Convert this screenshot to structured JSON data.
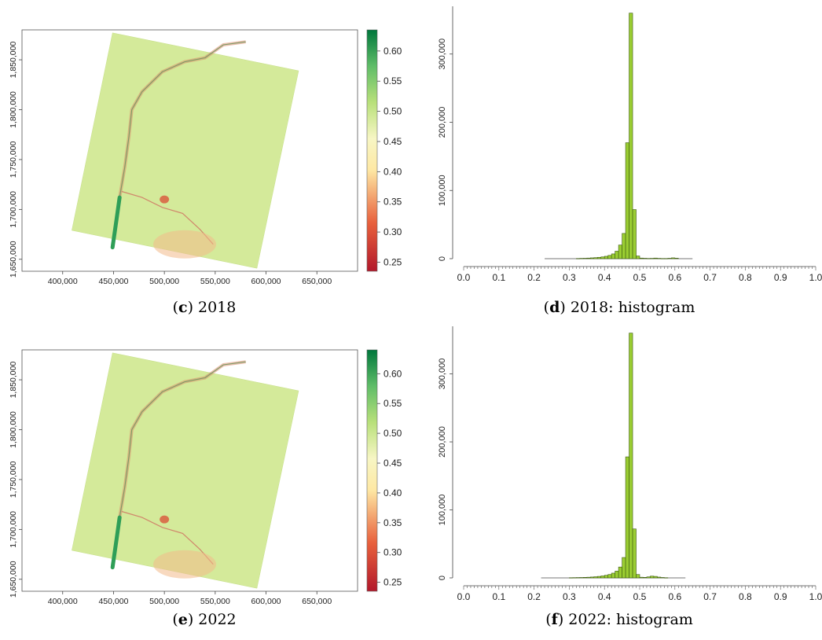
{
  "chart_data": [
    {
      "type": "heatmap",
      "panel": "c",
      "caption_letter": "c",
      "caption_text": "2018",
      "x_ticks": [
        "400,000",
        "450,000",
        "500,000",
        "550,000",
        "600,000",
        "650,000"
      ],
      "x_tick_values": [
        400000,
        450000,
        500000,
        550000,
        600000,
        650000
      ],
      "xlim": [
        360000,
        690000
      ],
      "y_ticks": [
        "1,650,000",
        "1,700,000",
        "1,750,000",
        "1,800,000",
        "1,850,000"
      ],
      "y_tick_values": [
        1650000,
        1700000,
        1750000,
        1800000,
        1850000
      ],
      "ylim": [
        1638000,
        1880000
      ],
      "colorbar_ticks": [
        "0.25",
        "0.30",
        "0.35",
        "0.40",
        "0.45",
        "0.50",
        "0.55",
        "0.60"
      ],
      "colorbar_values": [
        0.25,
        0.3,
        0.35,
        0.4,
        0.45,
        0.5,
        0.55,
        0.6
      ],
      "colorbar_range": [
        0.235,
        0.635
      ],
      "scene_corners": [
        [
          449000,
          1877000
        ],
        [
          632000,
          1839000
        ],
        [
          591000,
          1641000
        ],
        [
          409000,
          1679000
        ]
      ],
      "river_line": [
        [
          449000,
          1662000
        ],
        [
          453000,
          1690000
        ],
        [
          456000,
          1712000
        ],
        [
          461000,
          1742000
        ],
        [
          465000,
          1772000
        ],
        [
          468000,
          1800000
        ],
        [
          478000,
          1818000
        ],
        [
          498000,
          1838000
        ],
        [
          520000,
          1848000
        ],
        [
          540000,
          1852000
        ],
        [
          558000,
          1865000
        ],
        [
          580000,
          1868000
        ]
      ],
      "tributary_line": [
        [
          458000,
          1718000
        ],
        [
          478000,
          1712000
        ],
        [
          498000,
          1702000
        ],
        [
          518000,
          1696000
        ],
        [
          535000,
          1680000
        ],
        [
          548000,
          1665000
        ]
      ]
    },
    {
      "type": "bar",
      "panel": "d",
      "caption_letter": "d",
      "caption_text": "2018: histogram",
      "x_ticks": [
        "0.0",
        "0.1",
        "0.2",
        "0.3",
        "0.4",
        "0.5",
        "0.6",
        "0.7",
        "0.8",
        "0.9",
        "1.0"
      ],
      "x_tick_values": [
        0.0,
        0.1,
        0.2,
        0.3,
        0.4,
        0.5,
        0.6,
        0.7,
        0.8,
        0.9,
        1.0
      ],
      "xlim": [
        0.0,
        1.0
      ],
      "y_ticks": [
        "0",
        "100,000",
        "200,000",
        "300,000"
      ],
      "y_tick_values": [
        0,
        100000,
        200000,
        300000
      ],
      "ylim": [
        0,
        370000
      ],
      "bin_width": 0.01,
      "bin_starts": [
        0.32,
        0.33,
        0.34,
        0.35,
        0.36,
        0.37,
        0.38,
        0.39,
        0.4,
        0.41,
        0.42,
        0.43,
        0.44,
        0.45,
        0.46,
        0.47,
        0.48,
        0.49,
        0.5,
        0.51,
        0.52,
        0.53,
        0.54,
        0.55,
        0.56,
        0.57,
        0.58,
        0.59,
        0.6
      ],
      "counts": [
        300,
        500,
        600,
        900,
        1200,
        1500,
        2000,
        2600,
        3500,
        4800,
        7000,
        11000,
        20000,
        37000,
        170000,
        360000,
        72000,
        4000,
        900,
        600,
        400,
        500,
        900,
        500,
        300,
        300,
        600,
        1200,
        700
      ],
      "baseline_range": [
        0.23,
        0.65
      ],
      "bar_color": "#9acd32"
    },
    {
      "type": "heatmap",
      "panel": "e",
      "caption_letter": "e",
      "caption_text": "2022",
      "x_ticks": [
        "400,000",
        "450,000",
        "500,000",
        "550,000",
        "600,000",
        "650,000"
      ],
      "x_tick_values": [
        400000,
        450000,
        500000,
        550000,
        600000,
        650000
      ],
      "xlim": [
        360000,
        690000
      ],
      "y_ticks": [
        "1,650,000",
        "1,700,000",
        "1,750,000",
        "1,800,000",
        "1,850,000"
      ],
      "y_tick_values": [
        1650000,
        1700000,
        1750000,
        1800000,
        1850000
      ],
      "ylim": [
        1638000,
        1880000
      ],
      "colorbar_ticks": [
        "0.25",
        "0.30",
        "0.35",
        "0.40",
        "0.45",
        "0.50",
        "0.55",
        "0.60"
      ],
      "colorbar_values": [
        0.25,
        0.3,
        0.35,
        0.4,
        0.45,
        0.5,
        0.55,
        0.6
      ],
      "colorbar_range": [
        0.235,
        0.64
      ],
      "scene_corners": [
        [
          449000,
          1877000
        ],
        [
          632000,
          1839000
        ],
        [
          591000,
          1641000
        ],
        [
          409000,
          1679000
        ]
      ],
      "river_line": [
        [
          449000,
          1662000
        ],
        [
          453000,
          1690000
        ],
        [
          456000,
          1712000
        ],
        [
          461000,
          1742000
        ],
        [
          465000,
          1772000
        ],
        [
          468000,
          1800000
        ],
        [
          478000,
          1818000
        ],
        [
          498000,
          1838000
        ],
        [
          520000,
          1848000
        ],
        [
          540000,
          1852000
        ],
        [
          558000,
          1865000
        ],
        [
          580000,
          1868000
        ]
      ],
      "tributary_line": [
        [
          458000,
          1718000
        ],
        [
          478000,
          1712000
        ],
        [
          498000,
          1702000
        ],
        [
          518000,
          1696000
        ],
        [
          535000,
          1680000
        ],
        [
          548000,
          1665000
        ]
      ]
    },
    {
      "type": "bar",
      "panel": "f",
      "caption_letter": "f",
      "caption_text": "2022: histogram",
      "x_ticks": [
        "0.0",
        "0.1",
        "0.2",
        "0.3",
        "0.4",
        "0.5",
        "0.6",
        "0.7",
        "0.8",
        "0.9",
        "1.0"
      ],
      "x_tick_values": [
        0.0,
        0.1,
        0.2,
        0.3,
        0.4,
        0.5,
        0.6,
        0.7,
        0.8,
        0.9,
        1.0
      ],
      "xlim": [
        0.0,
        1.0
      ],
      "y_ticks": [
        "0",
        "100,000",
        "200,000",
        "300,000"
      ],
      "y_tick_values": [
        0,
        100000,
        200000,
        300000
      ],
      "ylim": [
        0,
        370000
      ],
      "bin_width": 0.01,
      "bin_starts": [
        0.3,
        0.31,
        0.32,
        0.33,
        0.34,
        0.35,
        0.36,
        0.37,
        0.38,
        0.39,
        0.4,
        0.41,
        0.42,
        0.43,
        0.44,
        0.45,
        0.46,
        0.47,
        0.48,
        0.49,
        0.5,
        0.51,
        0.52,
        0.53,
        0.54,
        0.55,
        0.56,
        0.57
      ],
      "counts": [
        300,
        400,
        500,
        600,
        800,
        1000,
        1300,
        1700,
        2200,
        2900,
        3800,
        5000,
        7000,
        10000,
        16000,
        30000,
        178000,
        360000,
        72000,
        5000,
        1000,
        800,
        1500,
        2600,
        2200,
        1200,
        600,
        300
      ],
      "baseline_range": [
        0.22,
        0.63
      ],
      "bar_color": "#9acd32"
    }
  ]
}
